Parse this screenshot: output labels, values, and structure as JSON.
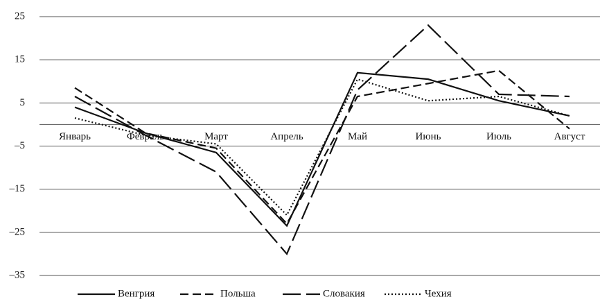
{
  "chart_data": {
    "type": "line",
    "categories": [
      "Январь",
      "Февраль",
      "Март",
      "Апрель",
      "Май",
      "Июнь",
      "Июль",
      "Август"
    ],
    "series": [
      {
        "name": "Венгрия",
        "color": "#111111",
        "dash": "solid",
        "values": [
          4,
          -2,
          -6.5,
          -23.5,
          12,
          10.5,
          5.5,
          2
        ]
      },
      {
        "name": "Польша",
        "color": "#111111",
        "dash": "dashed",
        "values": [
          8.5,
          -2,
          -5.5,
          -23,
          6.5,
          9.5,
          12.5,
          -1
        ]
      },
      {
        "name": "Словакия",
        "color": "#111111",
        "dash": "longdash",
        "values": [
          6.5,
          -2.5,
          -11,
          -30,
          8,
          23,
          7,
          6.5
        ]
      },
      {
        "name": "Чехия",
        "color": "#111111",
        "dash": "dotted",
        "values": [
          1.5,
          -2.5,
          -4.5,
          -21,
          10.5,
          5.5,
          6.5,
          2
        ]
      }
    ],
    "ylim": [
      -35,
      25
    ],
    "yticks": [
      25,
      15,
      5,
      {
        "value": -5,
        "label": "–5"
      },
      {
        "value": -15,
        "label": "–15"
      },
      {
        "value": -25,
        "label": "–25"
      },
      {
        "value": -35,
        "label": "–35"
      }
    ],
    "grid": true,
    "legend": "bottom"
  }
}
